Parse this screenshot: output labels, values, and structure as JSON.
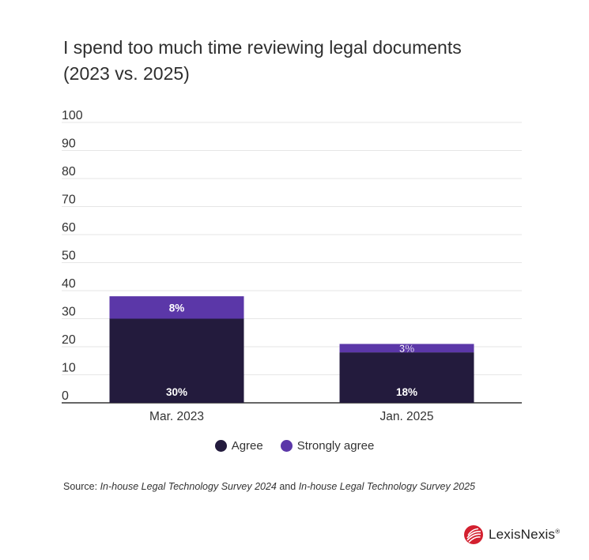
{
  "title_line1": "I spend too much time reviewing legal documents",
  "title_line2": "(2023 vs. 2025)",
  "colors": {
    "agree": "#231b3d",
    "strongly_agree": "#5b37a8",
    "grid": "#e6e6e6",
    "axis": "#333333"
  },
  "chart_data": {
    "type": "bar",
    "stacked": true,
    "categories": [
      "Mar. 2023",
      "Jan. 2025"
    ],
    "series": [
      {
        "name": "Agree",
        "values": [
          30,
          18
        ],
        "labels": [
          "30%",
          "18%"
        ]
      },
      {
        "name": "Strongly agree",
        "values": [
          8,
          3
        ],
        "labels": [
          "8%",
          "3%"
        ]
      }
    ],
    "ylim": [
      0,
      100
    ],
    "yticks": [
      0,
      10,
      20,
      30,
      40,
      50,
      60,
      70,
      80,
      90,
      100
    ],
    "grid": true,
    "legend": "bottom"
  },
  "legend": {
    "agree": "Agree",
    "strongly_agree": "Strongly agree"
  },
  "source": {
    "prefix": "Source: ",
    "survey1": "In-house Legal Technology Survey 2024",
    "joiner": " and ",
    "survey2": "In-house Legal Technology Survey 2025"
  },
  "brand": {
    "name": "LexisNexis",
    "mark": "®"
  }
}
